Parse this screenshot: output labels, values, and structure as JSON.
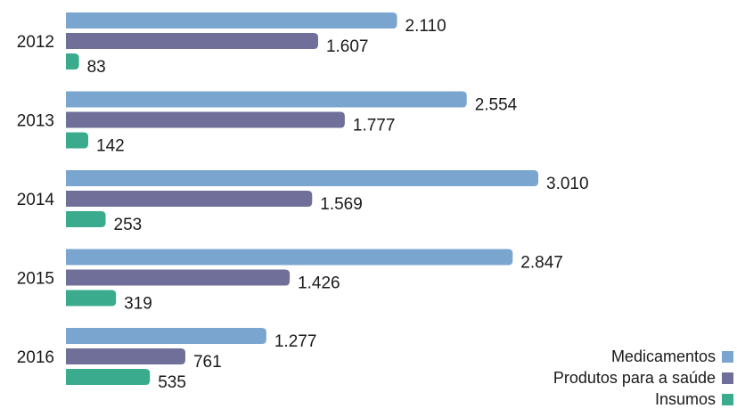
{
  "chart_data": {
    "type": "bar",
    "orientation": "horizontal",
    "categories": [
      "2012",
      "2013",
      "2014",
      "2015",
      "2016"
    ],
    "series": [
      {
        "name": "Medicamentos",
        "color": "#79a5cf",
        "values": [
          2110,
          2554,
          3010,
          2847,
          1277
        ],
        "labels": [
          "2.110",
          "2.554",
          "3.010",
          "2.847",
          "1.277"
        ]
      },
      {
        "name": "Produtos para a saúde",
        "color": "#6f6f9a",
        "values": [
          1607,
          1777,
          1569,
          1426,
          761
        ],
        "labels": [
          "1.607",
          "1.777",
          "1.569",
          "1.426",
          "761"
        ]
      },
      {
        "name": "Insumos",
        "color": "#3aab8c",
        "values": [
          83,
          142,
          253,
          319,
          535
        ],
        "labels": [
          "83",
          "142",
          "253",
          "319",
          "535"
        ]
      }
    ],
    "xlim": [
      0,
      3010
    ],
    "grid": false,
    "legend_position": "bottom-right"
  }
}
